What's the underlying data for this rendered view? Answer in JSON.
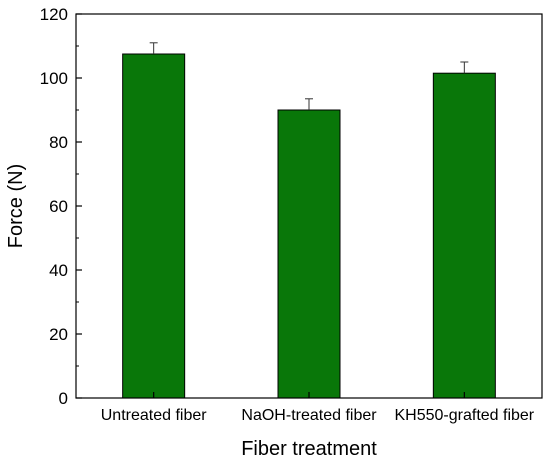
{
  "chart_data": {
    "type": "bar",
    "title": "",
    "xlabel": "Fiber treatment",
    "ylabel": "Force (N)",
    "categories": [
      "Untreated fiber",
      "NaOH-treated fiber",
      "KH550-grafted fiber"
    ],
    "values": [
      107.5,
      90,
      101.5
    ],
    "error_bars": [
      3.5,
      3.5,
      3.5
    ],
    "ylim": [
      0,
      120
    ],
    "yticks": [
      0,
      20,
      40,
      60,
      80,
      100,
      120
    ],
    "grid": false,
    "legend": "none",
    "bar_color": "#097709"
  }
}
